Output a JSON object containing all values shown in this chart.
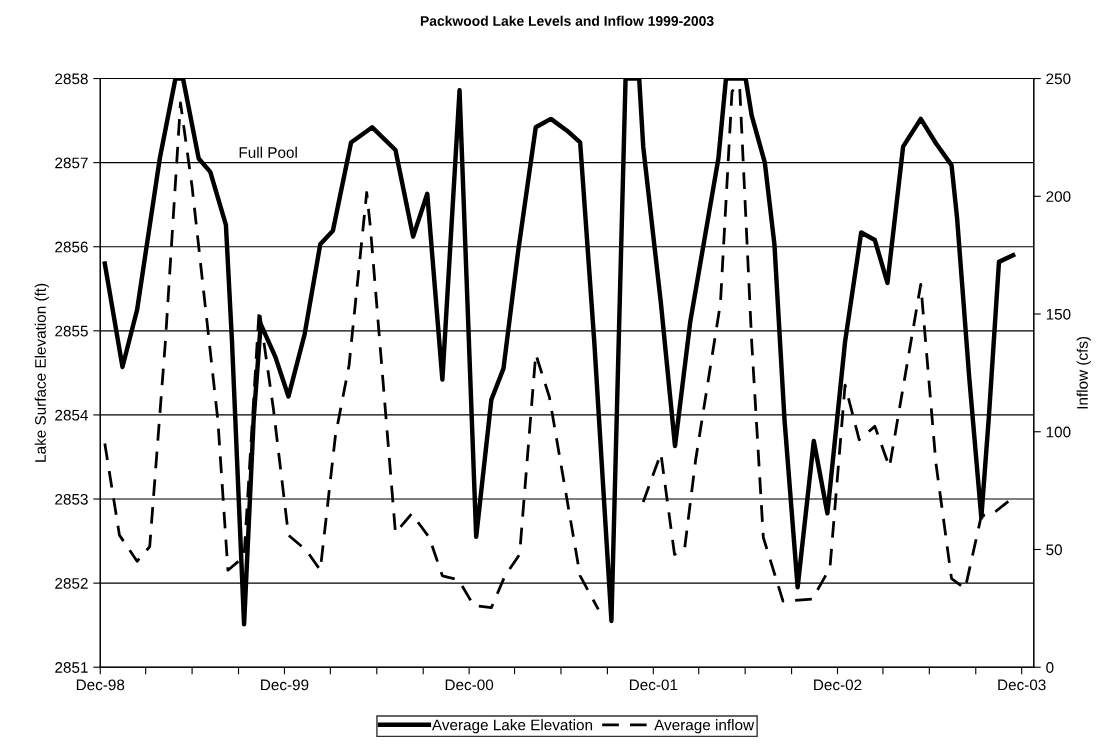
{
  "chart_data": {
    "type": "line",
    "title": "Packwood Lake Levels and Inflow 1999-2003",
    "ylabel": "Lake Surface Elevation (ft)",
    "y2label": "Inflow (cfs)",
    "xlim": [
      "1998-12-01",
      "2003-12-25"
    ],
    "xticks": [
      {
        "value": "1998-12-01",
        "label": "Dec-98"
      },
      {
        "value": "1999-03-01",
        "label": null
      },
      {
        "value": "1999-06-01",
        "label": null
      },
      {
        "value": "1999-09-01",
        "label": null
      },
      {
        "value": "1999-12-01",
        "label": "Dec-99"
      },
      {
        "value": "2000-03-01",
        "label": null
      },
      {
        "value": "2000-06-01",
        "label": null
      },
      {
        "value": "2000-09-01",
        "label": null
      },
      {
        "value": "2000-12-01",
        "label": "Dec-00"
      },
      {
        "value": "2001-03-01",
        "label": null
      },
      {
        "value": "2001-06-01",
        "label": null
      },
      {
        "value": "2001-09-01",
        "label": null
      },
      {
        "value": "2001-12-01",
        "label": "Dec-01"
      },
      {
        "value": "2002-03-01",
        "label": null
      },
      {
        "value": "2002-06-01",
        "label": null
      },
      {
        "value": "2002-09-01",
        "label": null
      },
      {
        "value": "2002-12-01",
        "label": "Dec-02"
      },
      {
        "value": "2003-03-01",
        "label": null
      },
      {
        "value": "2003-06-01",
        "label": null
      },
      {
        "value": "2003-09-01",
        "label": null
      },
      {
        "value": "2003-12-01",
        "label": "Dec-03"
      }
    ],
    "ylim": [
      2851,
      2858
    ],
    "yticks": [
      2851,
      2852,
      2853,
      2854,
      2855,
      2856,
      2857,
      2858
    ],
    "y2lim": [
      0,
      250
    ],
    "y2ticks": [
      0,
      50,
      100,
      150,
      200,
      250
    ],
    "grid": "y",
    "legend": "bottom",
    "marker": "none",
    "annotations": [
      "Full Pool"
    ],
    "series": [
      {
        "name": "Average Lake Elevation",
        "color": "#000000",
        "line_style": "solid",
        "x": [
          "1998-12-10",
          "1999-01-14",
          "1999-02-12",
          "1999-03-29",
          "1999-04-29",
          "1999-05-14",
          "1999-06-14",
          "1999-07-07",
          "1999-08-07",
          "1999-08-19",
          "1999-09-12",
          "1999-10-01",
          "1999-10-15",
          "1999-11-13",
          "1999-12-09",
          "2000-01-10",
          "2000-02-10",
          "2000-03-06",
          "2000-04-11",
          "2000-05-23",
          "2000-07-08",
          "2000-08-12",
          "2000-09-09",
          "2000-10-09",
          "2000-11-12",
          "2000-12-15",
          "2001-01-14",
          "2001-02-07",
          "2001-03-08",
          "2001-04-12",
          "2001-05-12",
          "2001-06-13",
          "2001-07-09",
          "2001-08-06",
          "2001-09-09",
          "2001-10-07",
          "2001-11-03",
          "2001-11-11",
          "2001-12-16",
          "2002-01-13",
          "2002-02-12",
          "2002-04-09",
          "2002-04-24",
          "2002-06-02",
          "2002-06-14",
          "2002-07-10",
          "2002-07-29",
          "2002-08-18",
          "2002-09-13",
          "2002-10-15",
          "2002-11-11",
          "2002-12-16",
          "2003-01-17",
          "2003-02-13",
          "2003-03-10",
          "2003-04-10",
          "2003-05-15",
          "2003-06-14",
          "2003-07-15",
          "2003-07-26",
          "2003-08-19",
          "2003-09-12",
          "2003-09-27",
          "2003-10-17",
          "2003-11-14"
        ],
        "values": [
          2855.8,
          2854.57,
          2855.25,
          2857.05,
          2858.0,
          2858.0,
          2857.05,
          2856.89,
          2856.26,
          2854.88,
          2851.51,
          2853.95,
          2855.08,
          2854.69,
          2854.22,
          2854.96,
          2856.03,
          2856.19,
          2857.24,
          2857.42,
          2857.15,
          2856.12,
          2856.63,
          2854.42,
          2857.86,
          2852.55,
          2854.18,
          2854.55,
          2855.94,
          2857.42,
          2857.52,
          2857.38,
          2857.24,
          2854.87,
          2851.55,
          2858.0,
          2858.0,
          2857.19,
          2855.33,
          2853.63,
          2855.1,
          2857.05,
          2858.0,
          2858.0,
          2857.56,
          2857.0,
          2856.03,
          2853.94,
          2851.95,
          2853.69,
          2852.83,
          2854.87,
          2856.17,
          2856.08,
          2855.57,
          2857.19,
          2857.52,
          2857.23,
          2856.97,
          2856.34,
          2854.45,
          2852.78,
          2853.98,
          2855.82,
          2855.9
        ]
      },
      {
        "name": "Average inflow",
        "color": "#000000",
        "line_style": "dashed",
        "axis": "y2",
        "x": [
          "1998-12-10",
          "1999-01-08",
          "1999-02-12",
          "1999-03-09",
          "1999-04-09",
          "1999-05-09",
          "1999-06-01",
          "1999-07-22",
          "1999-08-11",
          "1999-09-12",
          "1999-10-12",
          "1999-11-09",
          "1999-12-09",
          "2000-01-14",
          "2000-02-10",
          "2000-03-11",
          "2000-04-07",
          "2000-05-12",
          "2000-05-19",
          "2000-07-08",
          "2000-08-09",
          "2000-09-13",
          "2000-10-09",
          "2000-11-10",
          "2000-12-10",
          "2001-01-14",
          "2001-02-10",
          "2001-03-11",
          "2001-04-12",
          "2001-05-09",
          "2001-07-09",
          "2001-08-14",
          "2001-10-01",
          "2001-11-11",
          "2001-12-16",
          "2002-01-12",
          "2002-02-01",
          "2002-02-23",
          "2002-04-13",
          "2002-05-06",
          "2002-05-21",
          "2002-06-14",
          "2002-07-07",
          "2002-08-15",
          "2002-10-12",
          "2002-11-16",
          "2002-12-16",
          "2003-01-13",
          "2003-02-13",
          "2003-03-14",
          "2003-05-15",
          "2003-06-14",
          "2003-07-15",
          "2003-08-11",
          "2003-09-12",
          "2003-10-05",
          "2003-11-14"
        ],
        "values": [
          95.0,
          56.1,
          45.0,
          51.2,
          138,
          239.7,
          204,
          105,
          41.2,
          47.0,
          152,
          109.9,
          56.1,
          49.5,
          41.2,
          98.3,
          128.1,
          201.6,
          187.6,
          57.0,
          65.2,
          55.1,
          38.8,
          37.1,
          26.2,
          25.3,
          38.8,
          47.9,
          133,
          114.8,
          38.8,
          24.6,
          null,
          70.2,
          90.8,
          47.9,
          50.3,
          88.2,
          154.5,
          244.6,
          247.1,
          138,
          55.1,
          28.1,
          28.9,
          42.1,
          119.8,
          96.6,
          102.3,
          85.0,
          162.6,
          86.7,
          37.6,
          33.4,
          64.3,
          65.2,
          72.1
        ]
      }
    ]
  }
}
